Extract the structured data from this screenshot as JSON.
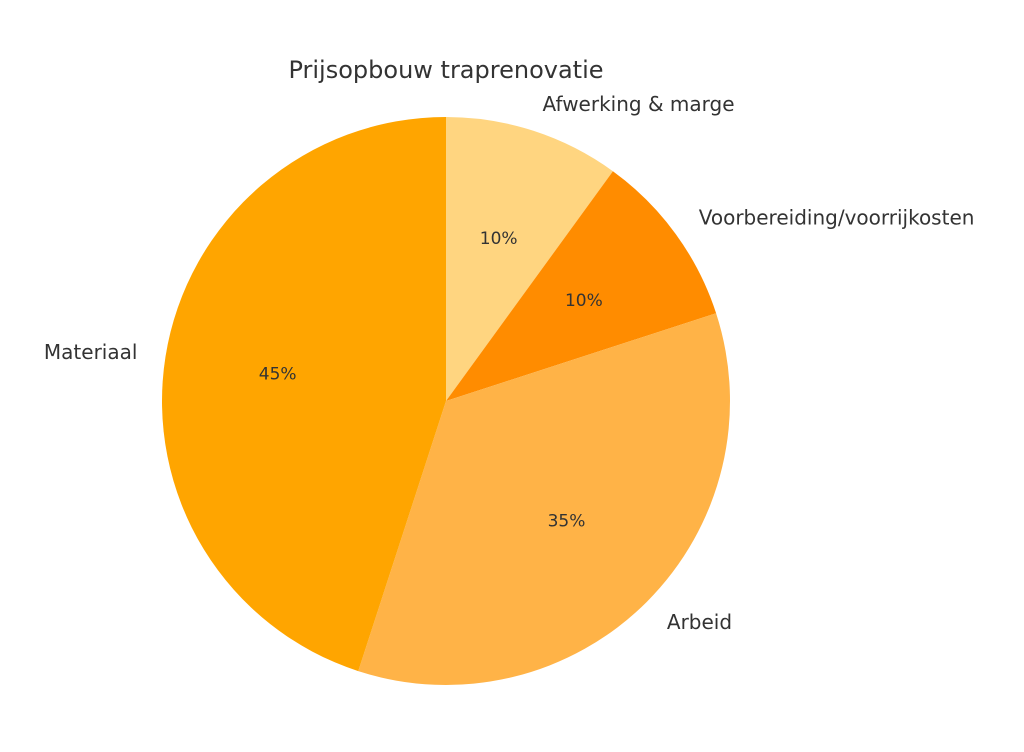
{
  "chart_data": {
    "type": "pie",
    "title": "Prijsopbouw traprenovatie",
    "categories": [
      "Afwerking & marge",
      "Voorbereiding/voorrijkosten",
      "Arbeid",
      "Materiaal"
    ],
    "values": [
      10,
      10,
      35,
      45
    ],
    "value_labels": [
      "10%",
      "10%",
      "35%",
      "45%"
    ],
    "colors": [
      "#FFD580",
      "#FF8C00",
      "#FFB347",
      "#FFA500"
    ],
    "start_angle": "top",
    "direction": "clockwise"
  }
}
